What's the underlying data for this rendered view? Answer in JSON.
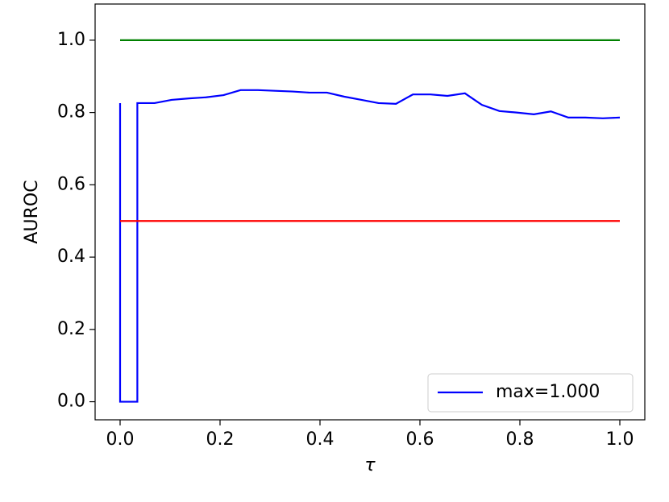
{
  "chart_data": {
    "type": "line",
    "x_label": "τ",
    "y_label": "AUROC",
    "series": [
      {
        "name": "max=1.000",
        "color": "#0000ff",
        "x": [
          0,
          0,
          0.0345,
          0.0345,
          0.069,
          0.103,
          0.138,
          0.172,
          0.207,
          0.241,
          0.276,
          0.31,
          0.345,
          0.379,
          0.414,
          0.448,
          0.483,
          0.517,
          0.552,
          0.586,
          0.621,
          0.655,
          0.69,
          0.724,
          0.759,
          0.793,
          0.828,
          0.862,
          0.897,
          0.931,
          0.966,
          1.0
        ],
        "values": [
          0.826,
          0,
          0,
          0.826,
          0.826,
          0.835,
          0.839,
          0.842,
          0.848,
          0.862,
          0.862,
          0.86,
          0.858,
          0.855,
          0.855,
          0.844,
          0.835,
          0.826,
          0.824,
          0.85,
          0.85,
          0.846,
          0.853,
          0.821,
          0.804,
          0.8,
          0.795,
          0.803,
          0.786,
          0.786,
          0.784,
          0.786
        ]
      },
      {
        "color": "#008000",
        "x": [
          0,
          1.0
        ],
        "values": [
          1.0,
          1.0
        ]
      },
      {
        "color": "#ff0000",
        "x": [
          0,
          1.0
        ],
        "values": [
          0.5,
          0.5
        ]
      }
    ],
    "xlim": [
      -0.05,
      1.05
    ],
    "ylim": [
      -0.05,
      1.1
    ],
    "xticks": [
      {
        "value": 0,
        "label": "0.0"
      },
      0.2,
      0.4,
      0.6,
      0.8,
      {
        "value": 1,
        "label": "1.0"
      }
    ],
    "yticks": [
      {
        "value": 0,
        "label": "0.0"
      },
      0.2,
      0.4,
      0.6,
      0.8,
      {
        "value": 1,
        "label": "1.0"
      }
    ],
    "legend": "lower right"
  }
}
